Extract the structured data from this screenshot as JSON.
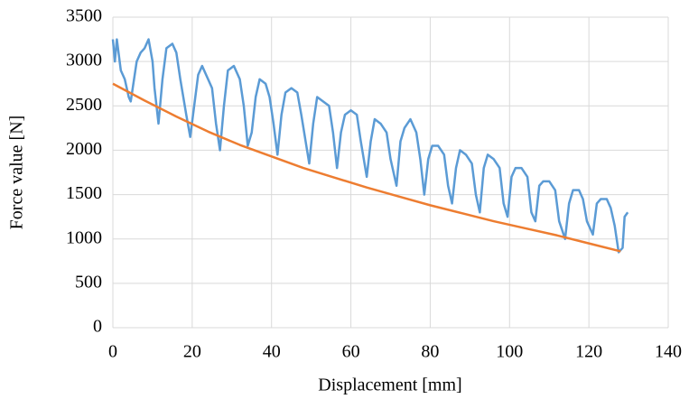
{
  "chart_data": {
    "type": "line",
    "xlabel": "Displacement  [mm]",
    "ylabel": "Force value [N]",
    "xlim": [
      0,
      140
    ],
    "xticks": [
      0,
      20,
      40,
      60,
      80,
      100,
      120,
      140
    ],
    "ylim": [
      0,
      3500
    ],
    "yticks": [
      0,
      500,
      1000,
      1500,
      2000,
      2500,
      3000,
      3500
    ],
    "grid": true,
    "series": [
      {
        "color": "#5b9bd5",
        "x": [
          0,
          0.5,
          1,
          2,
          3,
          4,
          4.5,
          5,
          6,
          7,
          8,
          9,
          10,
          10.5,
          11.5,
          12.5,
          13.5,
          15,
          16,
          17,
          18.5,
          19.5,
          20.5,
          21.5,
          22.5,
          24,
          25,
          26,
          27,
          28,
          29,
          30.5,
          32,
          33,
          34,
          35,
          36,
          37,
          38.5,
          39.5,
          40.5,
          41.5,
          42.5,
          43.5,
          45,
          46.5,
          47.5,
          49.5,
          50.5,
          51.5,
          53,
          54.5,
          55.5,
          56.5,
          57.5,
          58.5,
          60,
          61.5,
          62.5,
          64,
          65,
          66,
          67.5,
          69,
          70,
          71.5,
          72.5,
          73.5,
          75,
          76.5,
          77.5,
          78.5,
          79.5,
          80.5,
          82,
          83.5,
          84.5,
          85.5,
          86.5,
          87.5,
          89,
          90.5,
          91.5,
          92.5,
          93.5,
          94.5,
          96,
          97.5,
          98.5,
          99.5,
          100.5,
          101.5,
          103,
          104.5,
          105.5,
          106.5,
          107.5,
          108.5,
          110,
          111.5,
          112.5,
          114,
          115,
          116,
          117.5,
          118.5,
          119.5,
          121,
          122,
          123,
          124.5,
          125.5,
          126.5,
          127.5,
          128.5,
          129,
          129.8
        ],
        "values": [
          3250,
          3000,
          3250,
          2900,
          2800,
          2600,
          2550,
          2700,
          3000,
          3100,
          3150,
          3250,
          3000,
          2700,
          2300,
          2800,
          3150,
          3200,
          3100,
          2800,
          2400,
          2150,
          2500,
          2850,
          2950,
          2800,
          2700,
          2300,
          2000,
          2500,
          2900,
          2950,
          2800,
          2500,
          2050,
          2200,
          2600,
          2800,
          2750,
          2600,
          2300,
          1950,
          2400,
          2650,
          2700,
          2650,
          2400,
          1850,
          2300,
          2600,
          2550,
          2500,
          2200,
          1800,
          2200,
          2400,
          2450,
          2400,
          2100,
          1700,
          2100,
          2350,
          2300,
          2200,
          1900,
          1600,
          2100,
          2250,
          2350,
          2200,
          1900,
          1500,
          1900,
          2050,
          2050,
          1950,
          1600,
          1400,
          1800,
          2000,
          1950,
          1850,
          1500,
          1300,
          1800,
          1950,
          1900,
          1800,
          1400,
          1250,
          1700,
          1800,
          1800,
          1700,
          1300,
          1200,
          1600,
          1650,
          1650,
          1550,
          1200,
          1000,
          1400,
          1550,
          1550,
          1450,
          1200,
          1050,
          1400,
          1450,
          1450,
          1350,
          1150,
          850,
          900,
          1250,
          1300
        ]
      },
      {
        "color": "#ed7d31",
        "x": [
          0,
          8,
          16,
          24,
          32,
          40,
          48,
          56,
          64,
          72,
          80,
          88,
          96,
          104,
          112,
          120,
          128
        ],
        "values": [
          2750,
          2560,
          2380,
          2210,
          2060,
          1930,
          1800,
          1690,
          1580,
          1480,
          1380,
          1290,
          1200,
          1120,
          1040,
          950,
          860
        ]
      }
    ]
  }
}
